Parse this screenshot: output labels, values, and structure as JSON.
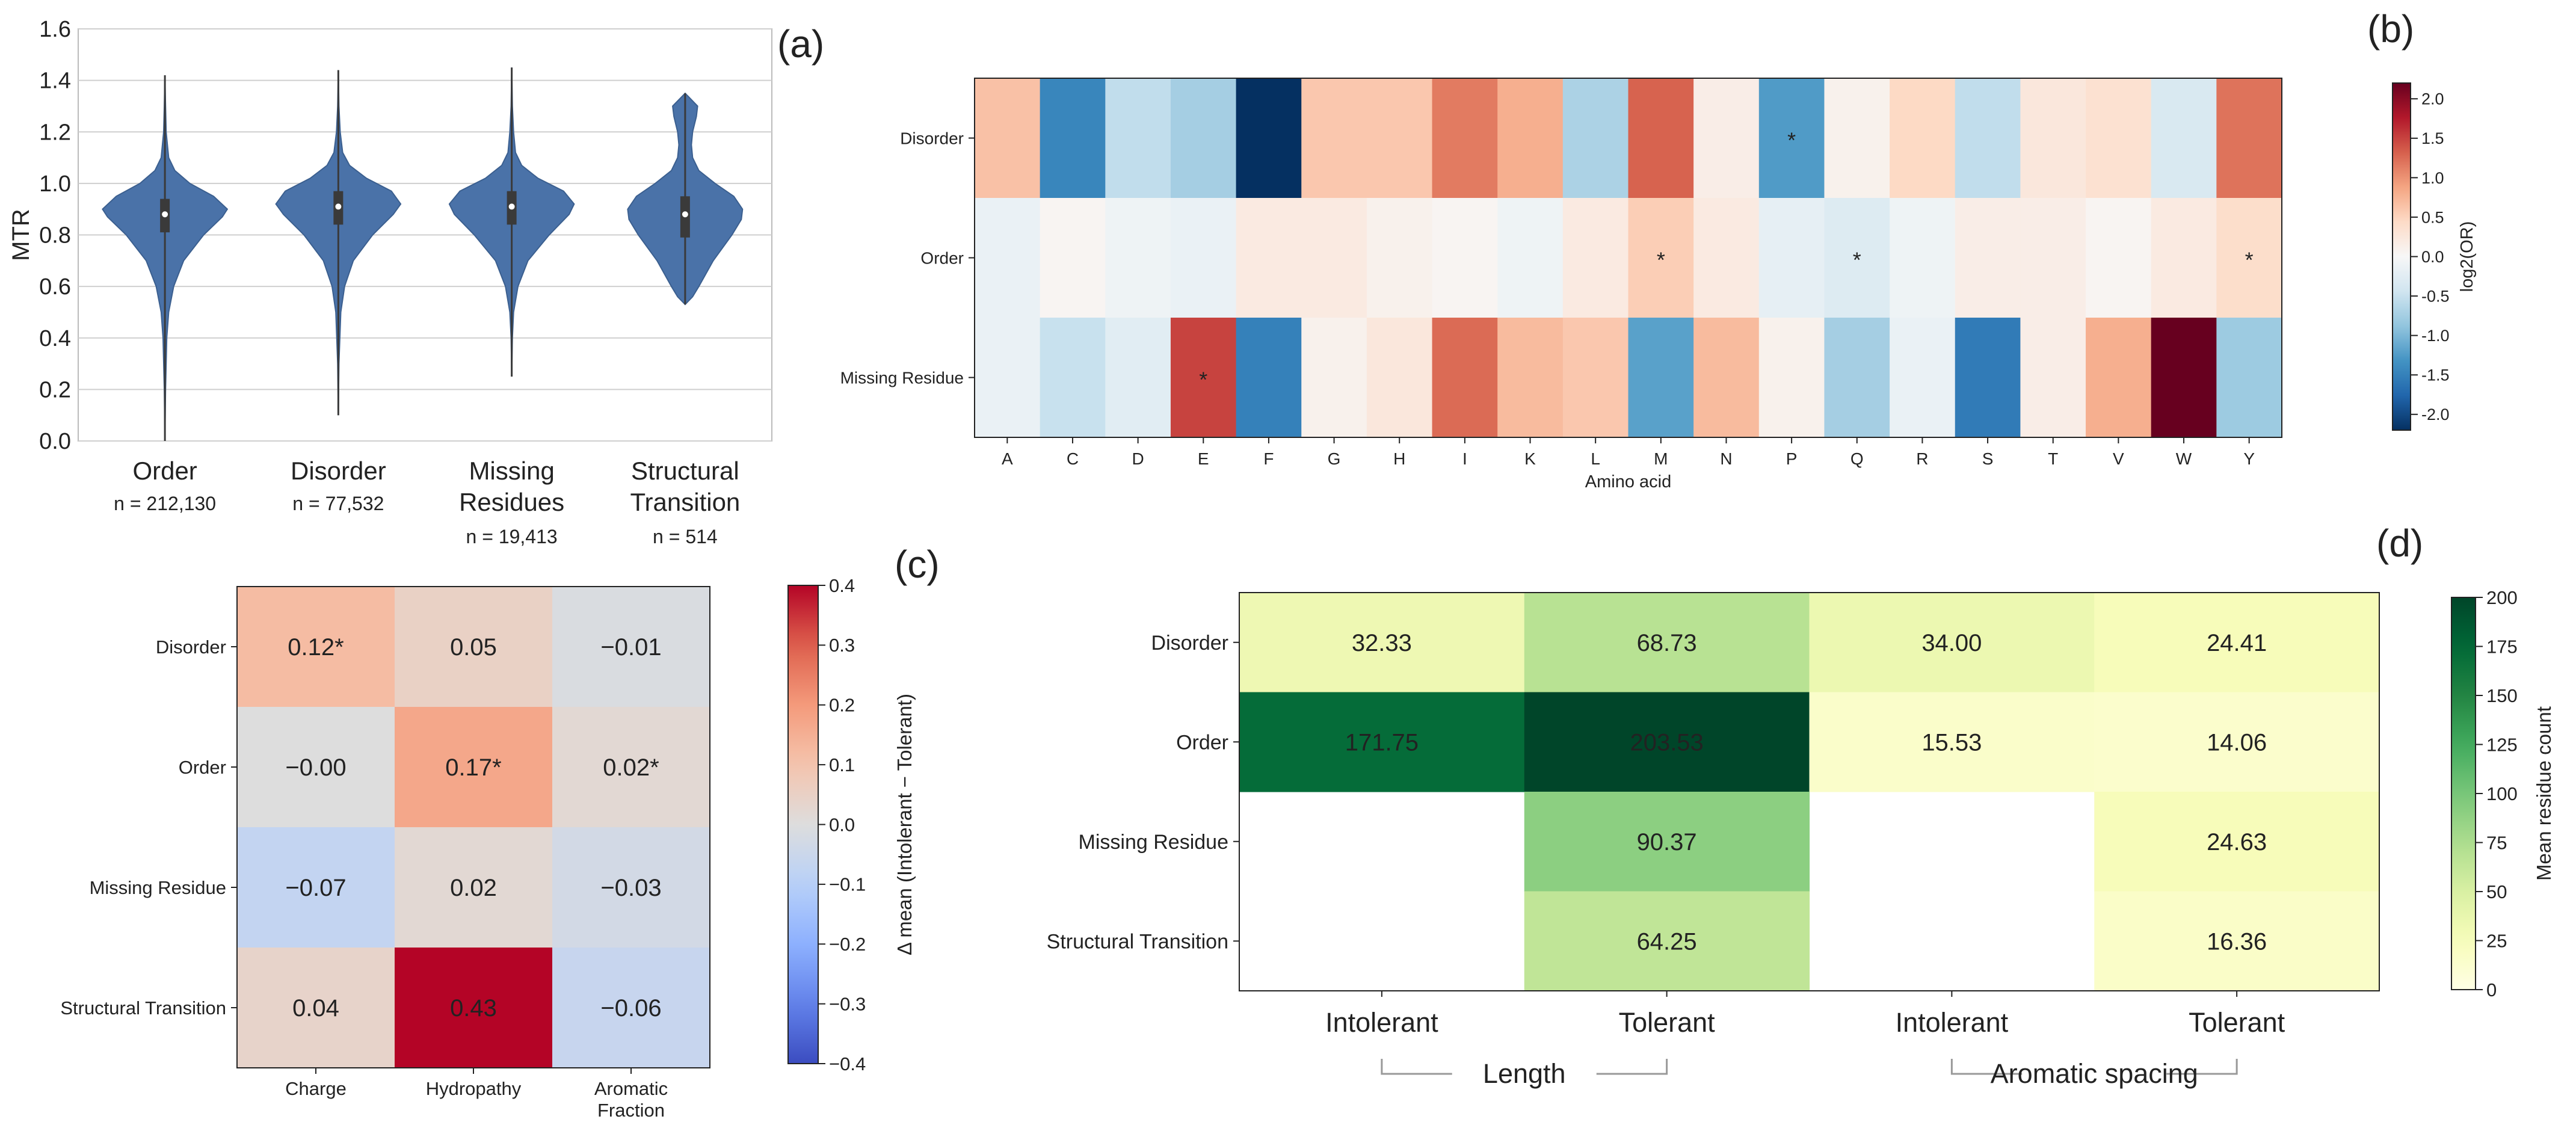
{
  "panels": {
    "a": "(a)",
    "b": "(b)",
    "c": "(c)",
    "d": "(d)"
  },
  "chart_data": [
    {
      "id": "a",
      "type": "violin",
      "ylabel": "MTR",
      "ylim": [
        0.0,
        1.6
      ],
      "yticks": [
        "0.0",
        "0.2",
        "0.4",
        "0.6",
        "0.8",
        "1.0",
        "1.2",
        "1.4",
        "1.6"
      ],
      "grid": true,
      "color": "#4a72a8",
      "categories": [
        {
          "label": [
            "Order"
          ],
          "n": "n = 212,130",
          "min": 0.0,
          "max": 1.42,
          "q1": 0.81,
          "median": 0.88,
          "q3": 0.94,
          "profile": [
            [
              0.0,
              0.0
            ],
            [
              0.2,
              0.01
            ],
            [
              0.4,
              0.03
            ],
            [
              0.5,
              0.06
            ],
            [
              0.6,
              0.14
            ],
            [
              0.7,
              0.3
            ],
            [
              0.8,
              0.62
            ],
            [
              0.87,
              0.92
            ],
            [
              0.9,
              1.0
            ],
            [
              0.95,
              0.78
            ],
            [
              1.0,
              0.4
            ],
            [
              1.05,
              0.16
            ],
            [
              1.1,
              0.06
            ],
            [
              1.2,
              0.02
            ],
            [
              1.3,
              0.01
            ],
            [
              1.42,
              0.0
            ]
          ]
        },
        {
          "label": [
            "Disorder"
          ],
          "n": "n = 77,532",
          "min": 0.1,
          "max": 1.44,
          "q1": 0.84,
          "median": 0.91,
          "q3": 0.97,
          "profile": [
            [
              0.1,
              0.0
            ],
            [
              0.3,
              0.01
            ],
            [
              0.5,
              0.04
            ],
            [
              0.6,
              0.1
            ],
            [
              0.7,
              0.24
            ],
            [
              0.8,
              0.55
            ],
            [
              0.88,
              0.88
            ],
            [
              0.92,
              1.0
            ],
            [
              0.97,
              0.85
            ],
            [
              1.02,
              0.45
            ],
            [
              1.07,
              0.18
            ],
            [
              1.12,
              0.07
            ],
            [
              1.2,
              0.03
            ],
            [
              1.3,
              0.01
            ],
            [
              1.44,
              0.0
            ]
          ]
        },
        {
          "label": [
            "Missing",
            "Residues"
          ],
          "n": "n = 19,413",
          "min": 0.25,
          "max": 1.45,
          "q1": 0.84,
          "median": 0.91,
          "q3": 0.97,
          "profile": [
            [
              0.25,
              0.0
            ],
            [
              0.4,
              0.01
            ],
            [
              0.5,
              0.03
            ],
            [
              0.6,
              0.1
            ],
            [
              0.7,
              0.26
            ],
            [
              0.8,
              0.6
            ],
            [
              0.88,
              0.92
            ],
            [
              0.92,
              1.0
            ],
            [
              0.97,
              0.83
            ],
            [
              1.02,
              0.42
            ],
            [
              1.07,
              0.16
            ],
            [
              1.12,
              0.06
            ],
            [
              1.2,
              0.03
            ],
            [
              1.3,
              0.01
            ],
            [
              1.45,
              0.0
            ]
          ]
        },
        {
          "label": [
            "Structural",
            "Transition"
          ],
          "n": "n = 514",
          "min": 0.53,
          "max": 1.35,
          "q1": 0.79,
          "median": 0.88,
          "q3": 0.95,
          "profile": [
            [
              0.53,
              0.0
            ],
            [
              0.56,
              0.12
            ],
            [
              0.6,
              0.22
            ],
            [
              0.7,
              0.45
            ],
            [
              0.8,
              0.75
            ],
            [
              0.86,
              0.9
            ],
            [
              0.9,
              0.92
            ],
            [
              0.95,
              0.78
            ],
            [
              1.0,
              0.48
            ],
            [
              1.05,
              0.22
            ],
            [
              1.1,
              0.12
            ],
            [
              1.15,
              0.1
            ],
            [
              1.2,
              0.12
            ],
            [
              1.26,
              0.18
            ],
            [
              1.3,
              0.2
            ],
            [
              1.35,
              0.0
            ]
          ]
        }
      ]
    },
    {
      "id": "b",
      "type": "heatmap",
      "xlabel": "Amino acid",
      "cbar_label": "log2(OR)",
      "cbar_ticks": [
        "2.0",
        "1.5",
        "1.0",
        "0.5",
        "0.0",
        "-0.5",
        "-1.0",
        "-1.5",
        "-2.0"
      ],
      "vmin": -2.2,
      "vmax": 2.2,
      "rows": [
        "Disorder",
        "Order",
        "Missing Residue"
      ],
      "cols": [
        "A",
        "C",
        "D",
        "E",
        "F",
        "G",
        "H",
        "I",
        "K",
        "L",
        "M",
        "N",
        "P",
        "Q",
        "R",
        "S",
        "T",
        "V",
        "W",
        "Y"
      ],
      "values": [
        [
          0.65,
          -1.45,
          -0.55,
          -0.75,
          -2.2,
          0.6,
          0.6,
          1.15,
          0.8,
          -0.7,
          1.3,
          0.15,
          -1.25,
          0.1,
          0.45,
          -0.55,
          0.25,
          0.35,
          -0.35,
          1.2
        ],
        [
          -0.15,
          0.05,
          -0.1,
          -0.15,
          0.2,
          0.2,
          0.1,
          0.05,
          -0.1,
          0.2,
          0.55,
          0.2,
          -0.2,
          -0.3,
          -0.1,
          0.15,
          0.15,
          0.05,
          0.2,
          0.4
        ],
        [
          -0.15,
          -0.5,
          -0.25,
          1.5,
          -1.5,
          0.1,
          0.25,
          1.25,
          0.7,
          0.6,
          -1.2,
          0.7,
          0.1,
          -0.75,
          -0.15,
          -1.55,
          0.15,
          0.8,
          2.2,
          -0.8
        ]
      ],
      "stars": [
        [
          0,
          12
        ],
        [
          1,
          10
        ],
        [
          1,
          13
        ],
        [
          1,
          19
        ],
        [
          2,
          3
        ]
      ],
      "star_text": "*"
    },
    {
      "id": "c",
      "type": "heatmap",
      "cbar_label": "Δ mean (Intolerant − Tolerant)",
      "cbar_ticks": [
        "0.4",
        "0.3",
        "0.2",
        "0.1",
        "0.0",
        "−0.1",
        "−0.2",
        "−0.3",
        "−0.4"
      ],
      "vmin": -0.4,
      "vmax": 0.4,
      "rows": [
        "Disorder",
        "Order",
        "Missing Residue",
        "Structural Transition"
      ],
      "cols": [
        [
          "Charge"
        ],
        [
          "Hydropathy"
        ],
        [
          "Aromatic",
          "Fraction"
        ]
      ],
      "values": [
        [
          0.12,
          0.05,
          -0.01
        ],
        [
          0.0,
          0.17,
          0.02
        ],
        [
          -0.07,
          0.02,
          -0.03
        ],
        [
          0.04,
          0.43,
          -0.06
        ]
      ],
      "labels": [
        [
          "0.12*",
          "0.05",
          "−0.01"
        ],
        [
          "−0.00",
          "0.17*",
          "0.02*"
        ],
        [
          "−0.07",
          "0.02",
          "−0.03"
        ],
        [
          "0.04",
          "0.43",
          "−0.06"
        ]
      ]
    },
    {
      "id": "d",
      "type": "heatmap",
      "cbar_label": "Mean residue count",
      "cbar_ticks": [
        "200",
        "175",
        "150",
        "125",
        "100",
        "75",
        "50",
        "25",
        "0"
      ],
      "vmin": 0,
      "vmax": 200,
      "rows": [
        "Disorder",
        "Order",
        "Missing Residue",
        "Structural Transition"
      ],
      "cols": [
        "Intolerant",
        "Tolerant",
        "Intolerant",
        "Tolerant"
      ],
      "groups": [
        "Length",
        "Aromatic spacing"
      ],
      "values": [
        [
          32.33,
          68.73,
          34.0,
          24.41
        ],
        [
          171.75,
          203.53,
          15.53,
          14.06
        ],
        [
          null,
          90.37,
          null,
          24.63
        ],
        [
          null,
          64.25,
          null,
          16.36
        ]
      ],
      "labels": [
        [
          "32.33",
          "68.73",
          "34.00",
          "24.41"
        ],
        [
          "171.75",
          "203.53",
          "15.53",
          "14.06"
        ],
        [
          "",
          "90.37",
          "",
          "24.63"
        ],
        [
          "",
          "64.25",
          "",
          "16.36"
        ]
      ]
    }
  ]
}
